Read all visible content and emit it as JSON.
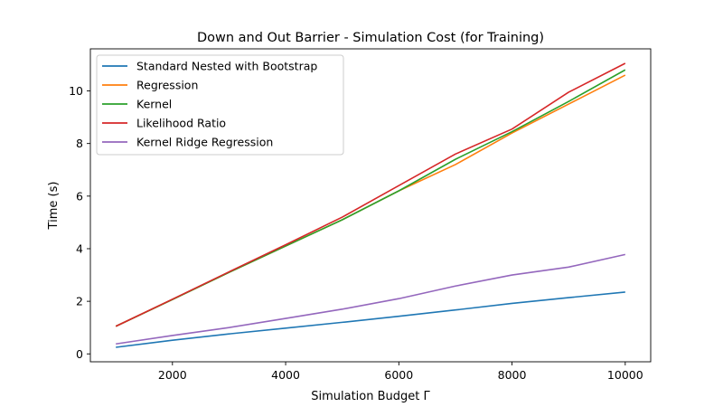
{
  "chart_data": {
    "type": "line",
    "title": "Down and Out Barrier - Simulation Cost (for Training)",
    "xlabel": "Simulation Budget Γ",
    "ylabel": "Time (s)",
    "xlim": [
      550,
      10450
    ],
    "ylim": [
      -0.3,
      11.6
    ],
    "xticks": [
      2000,
      4000,
      6000,
      8000,
      10000
    ],
    "yticks": [
      0,
      2,
      4,
      6,
      8,
      10
    ],
    "xtick_labels": [
      "2000",
      "4000",
      "6000",
      "8000",
      "10000"
    ],
    "ytick_labels": [
      "0",
      "2",
      "4",
      "6",
      "8",
      "10"
    ],
    "grid": false,
    "legend_position": "top-left",
    "x": [
      1000,
      2000,
      3000,
      4000,
      5000,
      6000,
      7000,
      8000,
      9000,
      10000
    ],
    "series": [
      {
        "name": "Standard Nested with Bootstrap",
        "color": "#1f77b4",
        "values": [
          0.25,
          0.52,
          0.76,
          0.98,
          1.2,
          1.43,
          1.67,
          1.92,
          2.14,
          2.35
        ]
      },
      {
        "name": "Regression",
        "color": "#ff7f0e",
        "values": [
          1.05,
          2.07,
          3.1,
          4.1,
          5.1,
          6.2,
          7.2,
          8.4,
          9.5,
          10.6
        ]
      },
      {
        "name": "Kernel",
        "color": "#2ca02c",
        "values": [
          1.05,
          2.07,
          3.1,
          4.1,
          5.1,
          6.2,
          7.4,
          8.45,
          9.6,
          10.8
        ]
      },
      {
        "name": "Likelihood Ratio",
        "color": "#d62728",
        "values": [
          1.05,
          2.08,
          3.12,
          4.15,
          5.2,
          6.4,
          7.6,
          8.55,
          9.95,
          11.05
        ]
      },
      {
        "name": "Kernel Ridge Regression",
        "color": "#9467bd",
        "values": [
          0.38,
          0.7,
          1.0,
          1.35,
          1.7,
          2.1,
          2.58,
          3.0,
          3.3,
          3.78
        ]
      }
    ]
  }
}
